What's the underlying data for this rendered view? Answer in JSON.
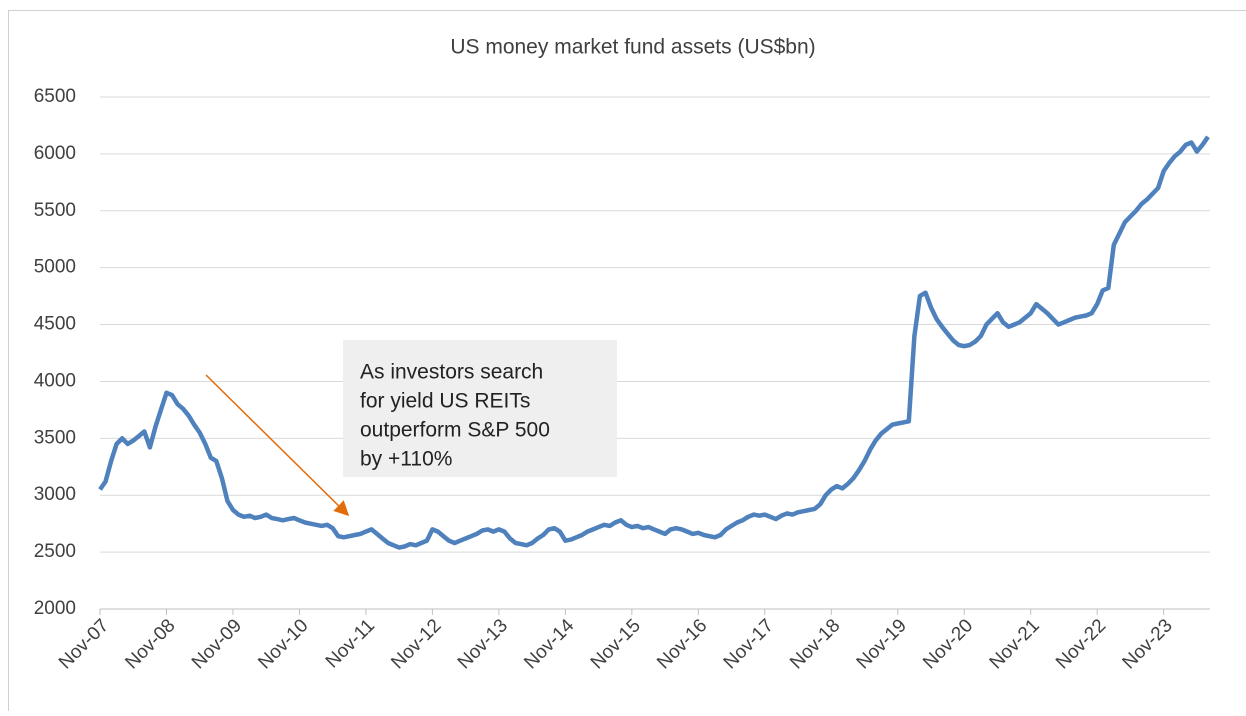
{
  "chart_data": {
    "type": "line",
    "title": "US money market fund assets (US$bn)",
    "annotation": [
      "As investors search",
      "for yield US REITs",
      "outperform S&P 500",
      "by +110%"
    ],
    "categories": [
      "Nov-07",
      "Dec-07",
      "Jan-08",
      "Feb-08",
      "Mar-08",
      "Apr-08",
      "May-08",
      "Jun-08",
      "Jul-08",
      "Aug-08",
      "Sep-08",
      "Oct-08",
      "Nov-08",
      "Dec-08",
      "Jan-09",
      "Feb-09",
      "Mar-09",
      "Apr-09",
      "May-09",
      "Jun-09",
      "Jul-09",
      "Aug-09",
      "Sep-09",
      "Oct-09",
      "Nov-09",
      "Dec-09",
      "Jan-10",
      "Feb-10",
      "Mar-10",
      "Apr-10",
      "May-10",
      "Jun-10",
      "Jul-10",
      "Aug-10",
      "Sep-10",
      "Oct-10",
      "Nov-10",
      "Dec-10",
      "Jan-11",
      "Feb-11",
      "Mar-11",
      "Apr-11",
      "May-11",
      "Jun-11",
      "Jul-11",
      "Aug-11",
      "Sep-11",
      "Oct-11",
      "Nov-11",
      "Dec-11",
      "Jan-12",
      "Feb-12",
      "Mar-12",
      "Apr-12",
      "May-12",
      "Jun-12",
      "Jul-12",
      "Aug-12",
      "Sep-12",
      "Oct-12",
      "Nov-12",
      "Dec-12",
      "Jan-13",
      "Feb-13",
      "Mar-13",
      "Apr-13",
      "May-13",
      "Jun-13",
      "Jul-13",
      "Aug-13",
      "Sep-13",
      "Oct-13",
      "Nov-13",
      "Dec-13",
      "Jan-14",
      "Feb-14",
      "Mar-14",
      "Apr-14",
      "May-14",
      "Jun-14",
      "Jul-14",
      "Aug-14",
      "Sep-14",
      "Oct-14",
      "Nov-14",
      "Dec-14",
      "Jan-15",
      "Feb-15",
      "Mar-15",
      "Apr-15",
      "May-15",
      "Jun-15",
      "Jul-15",
      "Aug-15",
      "Sep-15",
      "Oct-15",
      "Nov-15",
      "Dec-15",
      "Jan-16",
      "Feb-16",
      "Mar-16",
      "Apr-16",
      "May-16",
      "Jun-16",
      "Jul-16",
      "Aug-16",
      "Sep-16",
      "Oct-16",
      "Nov-16",
      "Dec-16",
      "Jan-17",
      "Feb-17",
      "Mar-17",
      "Apr-17",
      "May-17",
      "Jun-17",
      "Jul-17",
      "Aug-17",
      "Sep-17",
      "Oct-17",
      "Nov-17",
      "Dec-17",
      "Jan-18",
      "Feb-18",
      "Mar-18",
      "Apr-18",
      "May-18",
      "Jun-18",
      "Jul-18",
      "Aug-18",
      "Sep-18",
      "Oct-18",
      "Nov-18",
      "Dec-18",
      "Jan-19",
      "Feb-19",
      "Mar-19",
      "Apr-19",
      "May-19",
      "Jun-19",
      "Jul-19",
      "Aug-19",
      "Sep-19",
      "Oct-19",
      "Nov-19",
      "Dec-19",
      "Jan-20",
      "Feb-20",
      "Mar-20",
      "Apr-20",
      "May-20",
      "Jun-20",
      "Jul-20",
      "Aug-20",
      "Sep-20",
      "Oct-20",
      "Nov-20",
      "Dec-20",
      "Jan-21",
      "Feb-21",
      "Mar-21",
      "Apr-21",
      "May-21",
      "Jun-21",
      "Jul-21",
      "Aug-21",
      "Sep-21",
      "Oct-21",
      "Nov-21",
      "Dec-21",
      "Jan-22",
      "Feb-22",
      "Mar-22",
      "Apr-22",
      "May-22",
      "Jun-22",
      "Jul-22",
      "Aug-22",
      "Sep-22",
      "Oct-22",
      "Nov-22",
      "Dec-22",
      "Jan-23",
      "Feb-23",
      "Mar-23",
      "Apr-23",
      "May-23",
      "Jun-23",
      "Jul-23",
      "Aug-23",
      "Sep-23",
      "Oct-23",
      "Nov-23",
      "Dec-23",
      "Jan-24",
      "Feb-24",
      "Mar-24",
      "Apr-24",
      "May-24",
      "Jun-24",
      "Jul-24"
    ],
    "series": [
      {
        "color": "#4f81bd",
        "values": [
          3050,
          3120,
          3300,
          3450,
          3500,
          3450,
          3480,
          3520,
          3560,
          3420,
          3600,
          3750,
          3900,
          3880,
          3800,
          3760,
          3700,
          3620,
          3550,
          3450,
          3330,
          3300,
          3150,
          2950,
          2870,
          2830,
          2810,
          2820,
          2800,
          2810,
          2830,
          2800,
          2790,
          2780,
          2790,
          2800,
          2780,
          2760,
          2750,
          2740,
          2730,
          2740,
          2710,
          2640,
          2630,
          2640,
          2650,
          2660,
          2680,
          2700,
          2660,
          2620,
          2580,
          2560,
          2540,
          2550,
          2570,
          2560,
          2580,
          2600,
          2700,
          2680,
          2640,
          2600,
          2580,
          2600,
          2620,
          2640,
          2660,
          2690,
          2700,
          2680,
          2700,
          2680,
          2620,
          2580,
          2570,
          2560,
          2580,
          2620,
          2650,
          2700,
          2710,
          2680,
          2600,
          2610,
          2630,
          2650,
          2680,
          2700,
          2720,
          2740,
          2730,
          2760,
          2780,
          2740,
          2720,
          2730,
          2710,
          2720,
          2700,
          2680,
          2660,
          2700,
          2710,
          2700,
          2680,
          2660,
          2670,
          2650,
          2640,
          2630,
          2650,
          2700,
          2730,
          2760,
          2780,
          2810,
          2830,
          2820,
          2830,
          2810,
          2790,
          2820,
          2840,
          2830,
          2850,
          2860,
          2870,
          2880,
          2920,
          3000,
          3050,
          3080,
          3060,
          3100,
          3150,
          3220,
          3300,
          3400,
          3480,
          3540,
          3580,
          3620,
          3630,
          3640,
          3650,
          4400,
          4750,
          4780,
          4650,
          4550,
          4480,
          4420,
          4360,
          4320,
          4310,
          4320,
          4350,
          4400,
          4500,
          4550,
          4600,
          4520,
          4480,
          4500,
          4520,
          4560,
          4600,
          4680,
          4640,
          4600,
          4550,
          4500,
          4520,
          4540,
          4560,
          4570,
          4580,
          4600,
          4680,
          4800,
          4820,
          5200,
          5300,
          5400,
          5450,
          5500,
          5560,
          5600,
          5650,
          5700,
          5850,
          5920,
          5980,
          6020,
          6080,
          6100,
          6020,
          6080,
          6150
        ]
      }
    ],
    "xtick_every": 12,
    "ylim": [
      2000,
      6500
    ],
    "yticks": [
      2000,
      2500,
      3000,
      3500,
      4000,
      4500,
      5000,
      5500,
      6000,
      6500
    ],
    "grid": true
  }
}
